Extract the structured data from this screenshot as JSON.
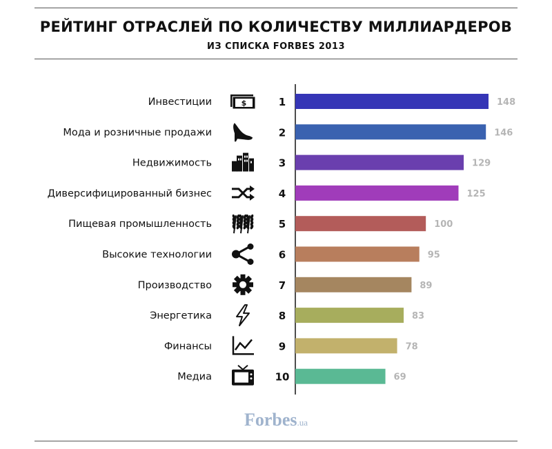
{
  "header": {
    "title": "РЕЙТИНГ ОТРАСЛЕЙ ПО КОЛИЧЕСТВУ МИЛЛИАРДЕРОВ",
    "subtitle": "ИЗ СПИСКА FORBES 2013"
  },
  "brand": {
    "name": "Forbes",
    "suffix": ".ua",
    "color": "#9fb3cd"
  },
  "chart_data": {
    "type": "bar",
    "orientation": "horizontal",
    "title": "РЕЙТИНГ ОТРАСЛЕЙ ПО КОЛИЧЕСТВУ МИЛЛИАРДЕРОВ",
    "subtitle": "ИЗ СПИСКА FORBES 2013",
    "xlabel": "",
    "ylabel": "",
    "xlim": [
      0,
      148
    ],
    "grid": false,
    "legend": "none",
    "categories": [
      "Инвестиции",
      "Мода и розничные продажи",
      "Недвижимость",
      "Диверсифицированный бизнес",
      "Пищевая промышленность",
      "Высокие технологии",
      "Производство",
      "Энергетика",
      "Финансы",
      "Медиа"
    ],
    "ranks": [
      "1",
      "2",
      "3",
      "4",
      "5",
      "6",
      "7",
      "8",
      "9",
      "10"
    ],
    "values": [
      148,
      146,
      129,
      125,
      100,
      95,
      89,
      83,
      78,
      69
    ],
    "colors": [
      "#3535b6",
      "#3a62b0",
      "#6a3fae",
      "#a03cba",
      "#b35c5a",
      "#b87e5d",
      "#a58660",
      "#a7ad5d",
      "#c2b16c",
      "#5ab994"
    ],
    "icons": [
      "money-icon",
      "high-heel-icon",
      "buildings-icon",
      "shuffle-icon",
      "wheat-icon",
      "network-icon",
      "gear-icon",
      "lightning-icon",
      "line-chart-icon",
      "tv-icon"
    ]
  }
}
